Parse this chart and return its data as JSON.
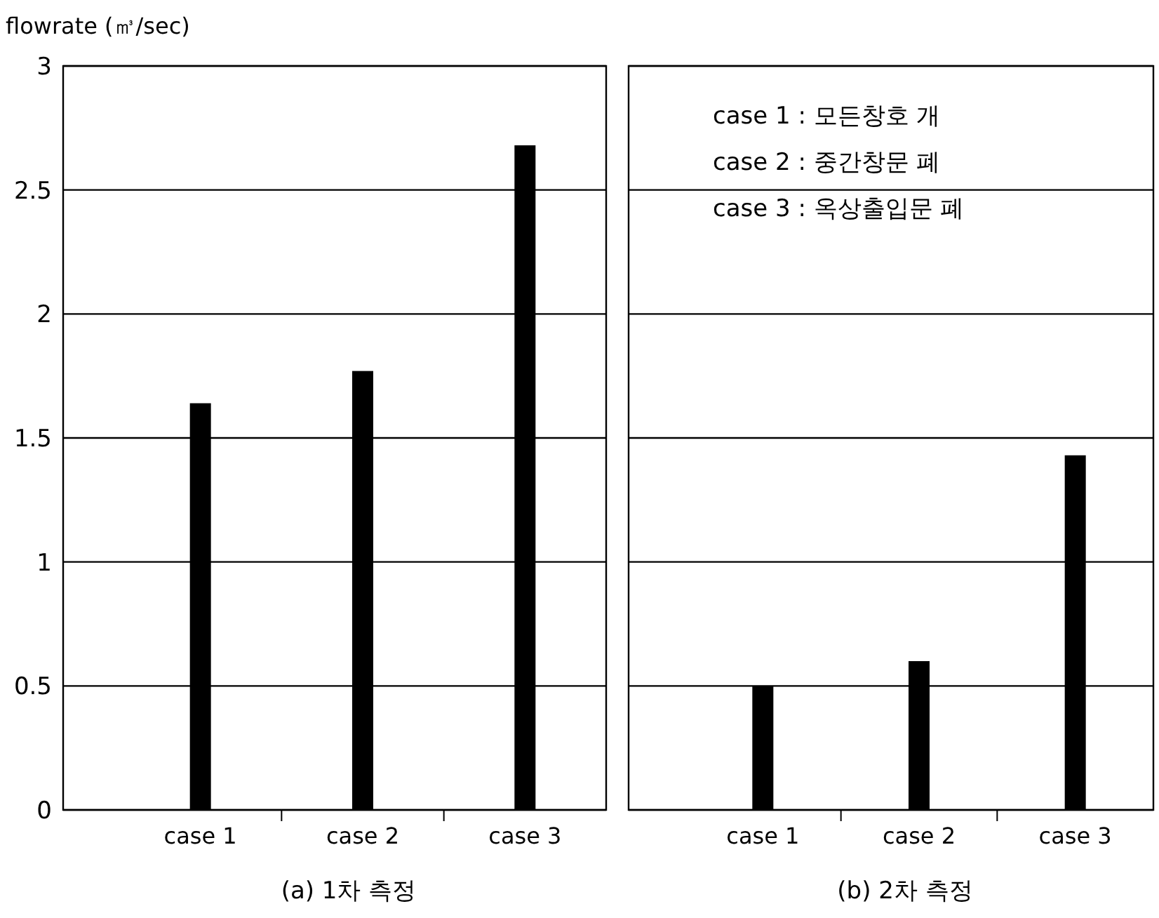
{
  "chart_data": [
    {
      "type": "bar",
      "title": "(a) 1차 측정",
      "ylabel": "flowrate (㎥/sec)",
      "categories": [
        "case 1",
        "case 2",
        "case 3"
      ],
      "values": [
        1.64,
        1.77,
        2.68
      ],
      "color": "#000000",
      "ylim": [
        0,
        3
      ],
      "yticks": [
        0,
        0.5,
        1,
        1.5,
        2,
        2.5,
        3
      ],
      "grid": "y"
    },
    {
      "type": "bar",
      "title": "(b) 2차 측정",
      "categories": [
        "case 1",
        "case 2",
        "case 3"
      ],
      "values": [
        0.5,
        0.6,
        1.43
      ],
      "color": "#000000",
      "ylim": [
        0,
        3
      ],
      "yticks": [
        0,
        0.5,
        1,
        1.5,
        2,
        2.5,
        3
      ],
      "grid": "y",
      "tick_labels": "x",
      "annotations": [
        "case 1 : 모든창호 개",
        "case 2 : 중간창문 폐",
        "case 3 : 옥상출입문 폐"
      ]
    }
  ]
}
